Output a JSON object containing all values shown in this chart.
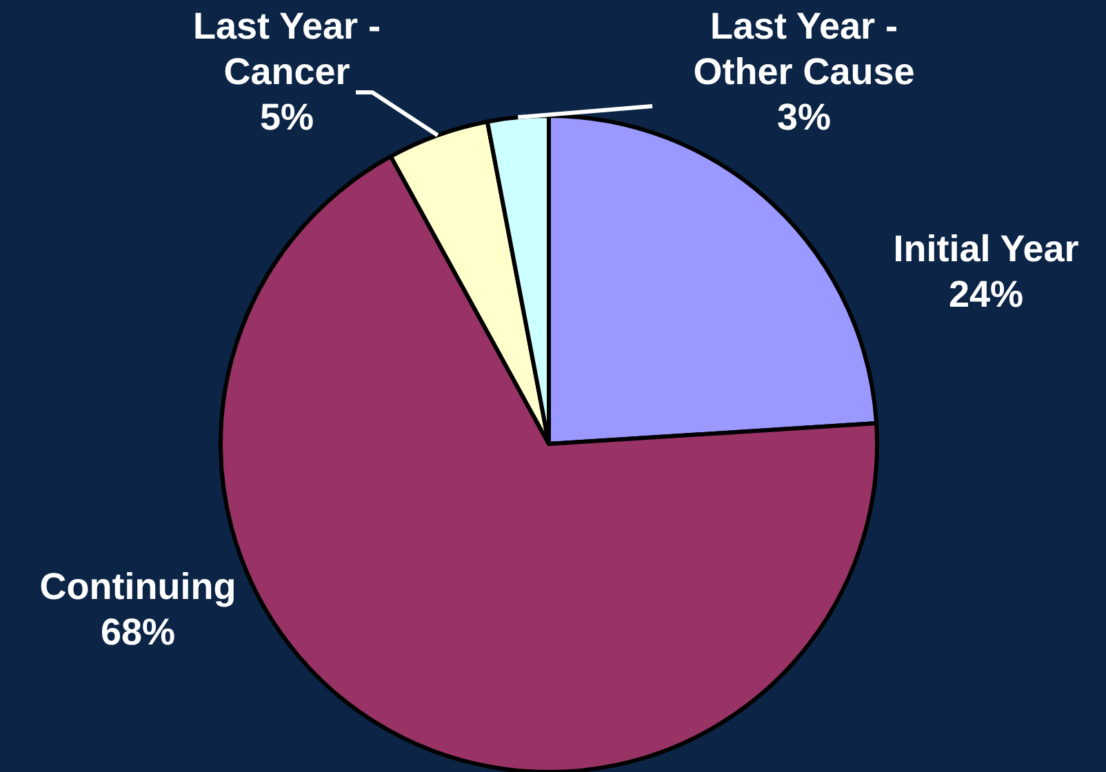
{
  "chart_data": {
    "type": "pie",
    "categories": [
      "Initial Year",
      "Continuing",
      "Last Year - Cancer",
      "Last Year - Other Cause"
    ],
    "values": [
      24,
      68,
      5,
      3
    ],
    "colors": [
      "#9999ff",
      "#993366",
      "#ffffcc",
      "#ccffff"
    ],
    "value_labels": [
      "24%",
      "68%",
      "5%",
      "3%"
    ]
  }
}
